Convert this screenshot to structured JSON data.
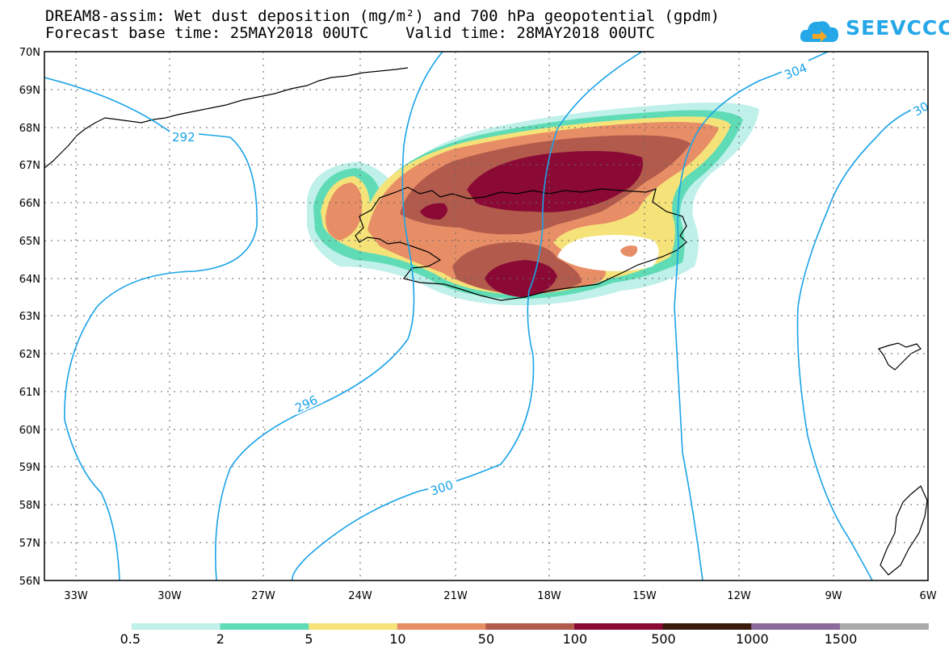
{
  "header": {
    "title_line1": "DREAM8-assim: Wet dust deposition (mg/m²) and 700 hPa geopotential (gpdm)",
    "title_line2": "Forecast base time: 25MAY2018 00UTC    Valid time: 28MAY2018 00UTC",
    "logo_text": "SEEVCCC"
  },
  "map": {
    "lon_range": [
      -35,
      -6
    ],
    "lat_range": [
      56,
      70
    ],
    "lat_labels": [
      "70N",
      "69N",
      "68N",
      "67N",
      "66N",
      "65N",
      "64N",
      "63N",
      "62N",
      "61N",
      "60N",
      "59N",
      "58N",
      "57N",
      "56N"
    ],
    "lon_labels": [
      "33W",
      "30W",
      "27W",
      "24W",
      "21W",
      "18W",
      "15W",
      "12W",
      "9W",
      "6W"
    ],
    "contour_labels": [
      "292",
      "296",
      "300",
      "304",
      "30"
    ],
    "isoline_color": "#1aa3e8"
  },
  "legend": {
    "labels": [
      "0.5",
      "2",
      "5",
      "10",
      "50",
      "100",
      "500",
      "1000",
      "1500"
    ],
    "colors": [
      "#bff0ea",
      "#5fdcb6",
      "#f5e37a",
      "#e88e66",
      "#b25a4c",
      "#8a0a35",
      "#3a1a0a",
      "#8a6a9a",
      "#aaaaaa"
    ]
  }
}
